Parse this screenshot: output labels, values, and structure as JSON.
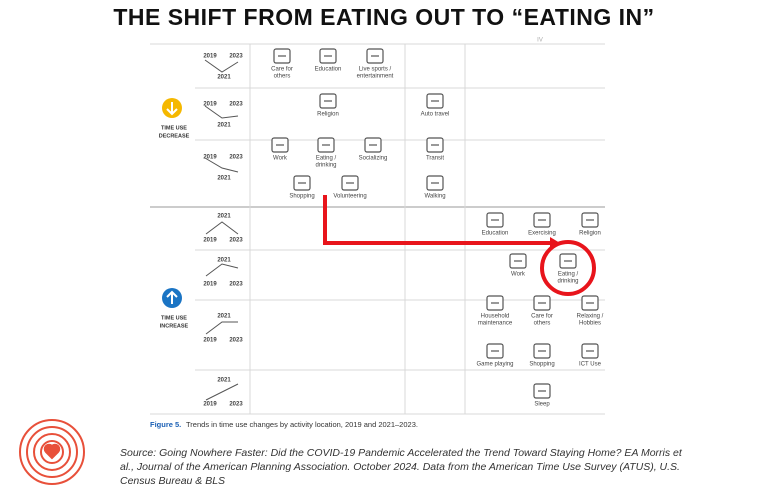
{
  "title": "THE SHIFT FROM EATING OUT TO “EATING IN”",
  "column_header": "IV",
  "groups": [
    {
      "label": [
        "TIME USE",
        "DECREASE"
      ]
    },
    {
      "label": [
        "TIME USE",
        "INCREASE"
      ]
    }
  ],
  "trend_rows": [
    {
      "start": "2019",
      "end": "2023",
      "mid": "2021"
    },
    {
      "start": "2019",
      "end": "2023",
      "mid": "2021"
    },
    {
      "start": "2019",
      "end": "2023",
      "mid": "2021"
    },
    {
      "start": "2019",
      "end": "2023",
      "mid": "2021"
    },
    {
      "start": "2019",
      "end": "2023",
      "mid": "2021"
    },
    {
      "start": "2019",
      "end": "2023",
      "mid": "2021"
    },
    {
      "start": "2019",
      "end": "2023",
      "mid": "2021"
    }
  ],
  "activities": [
    {
      "lines": [
        "Care for",
        "others"
      ]
    },
    {
      "lines": [
        "Education"
      ]
    },
    {
      "lines": [
        "Live sports /",
        "entertainment"
      ]
    },
    {
      "lines": [
        "Religion"
      ]
    },
    {
      "lines": [
        "Auto travel"
      ]
    },
    {
      "lines": [
        "Work"
      ]
    },
    {
      "lines": [
        "Eating /",
        "drinking"
      ]
    },
    {
      "lines": [
        "Socializing"
      ]
    },
    {
      "lines": [
        "Transit"
      ]
    },
    {
      "lines": [
        "Shopping"
      ]
    },
    {
      "lines": [
        "Volunteering"
      ]
    },
    {
      "lines": [
        "Walking"
      ]
    },
    {
      "lines": [
        "Education"
      ]
    },
    {
      "lines": [
        "Exercising"
      ]
    },
    {
      "lines": [
        "Religion"
      ]
    },
    {
      "lines": [
        "Work"
      ]
    },
    {
      "lines": [
        "Eating /",
        "drinking"
      ]
    },
    {
      "lines": [
        "Household",
        "maintenance"
      ]
    },
    {
      "lines": [
        "Care for",
        "others"
      ]
    },
    {
      "lines": [
        "Relaxing /",
        "Hobbies"
      ]
    },
    {
      "lines": [
        "Game playing"
      ]
    },
    {
      "lines": [
        "Shopping"
      ]
    },
    {
      "lines": [
        "ICT Use"
      ]
    },
    {
      "lines": [
        "Sleep"
      ]
    }
  ],
  "caption": {
    "figure": "Figure 5.",
    "text": "Trends in time use changes by activity location, 2019 and 2021–2023."
  },
  "source": [
    "Source: Going Nowhere Faster: Did the COVID-19 Pandemic Accelerated the Trend Toward Staying Home? EA Morris et",
    "al., Journal of the American Planning Association. October 2024. Data from the American Time Use Survey (ATUS), U.S.",
    "Census Bureau & BLS"
  ]
}
